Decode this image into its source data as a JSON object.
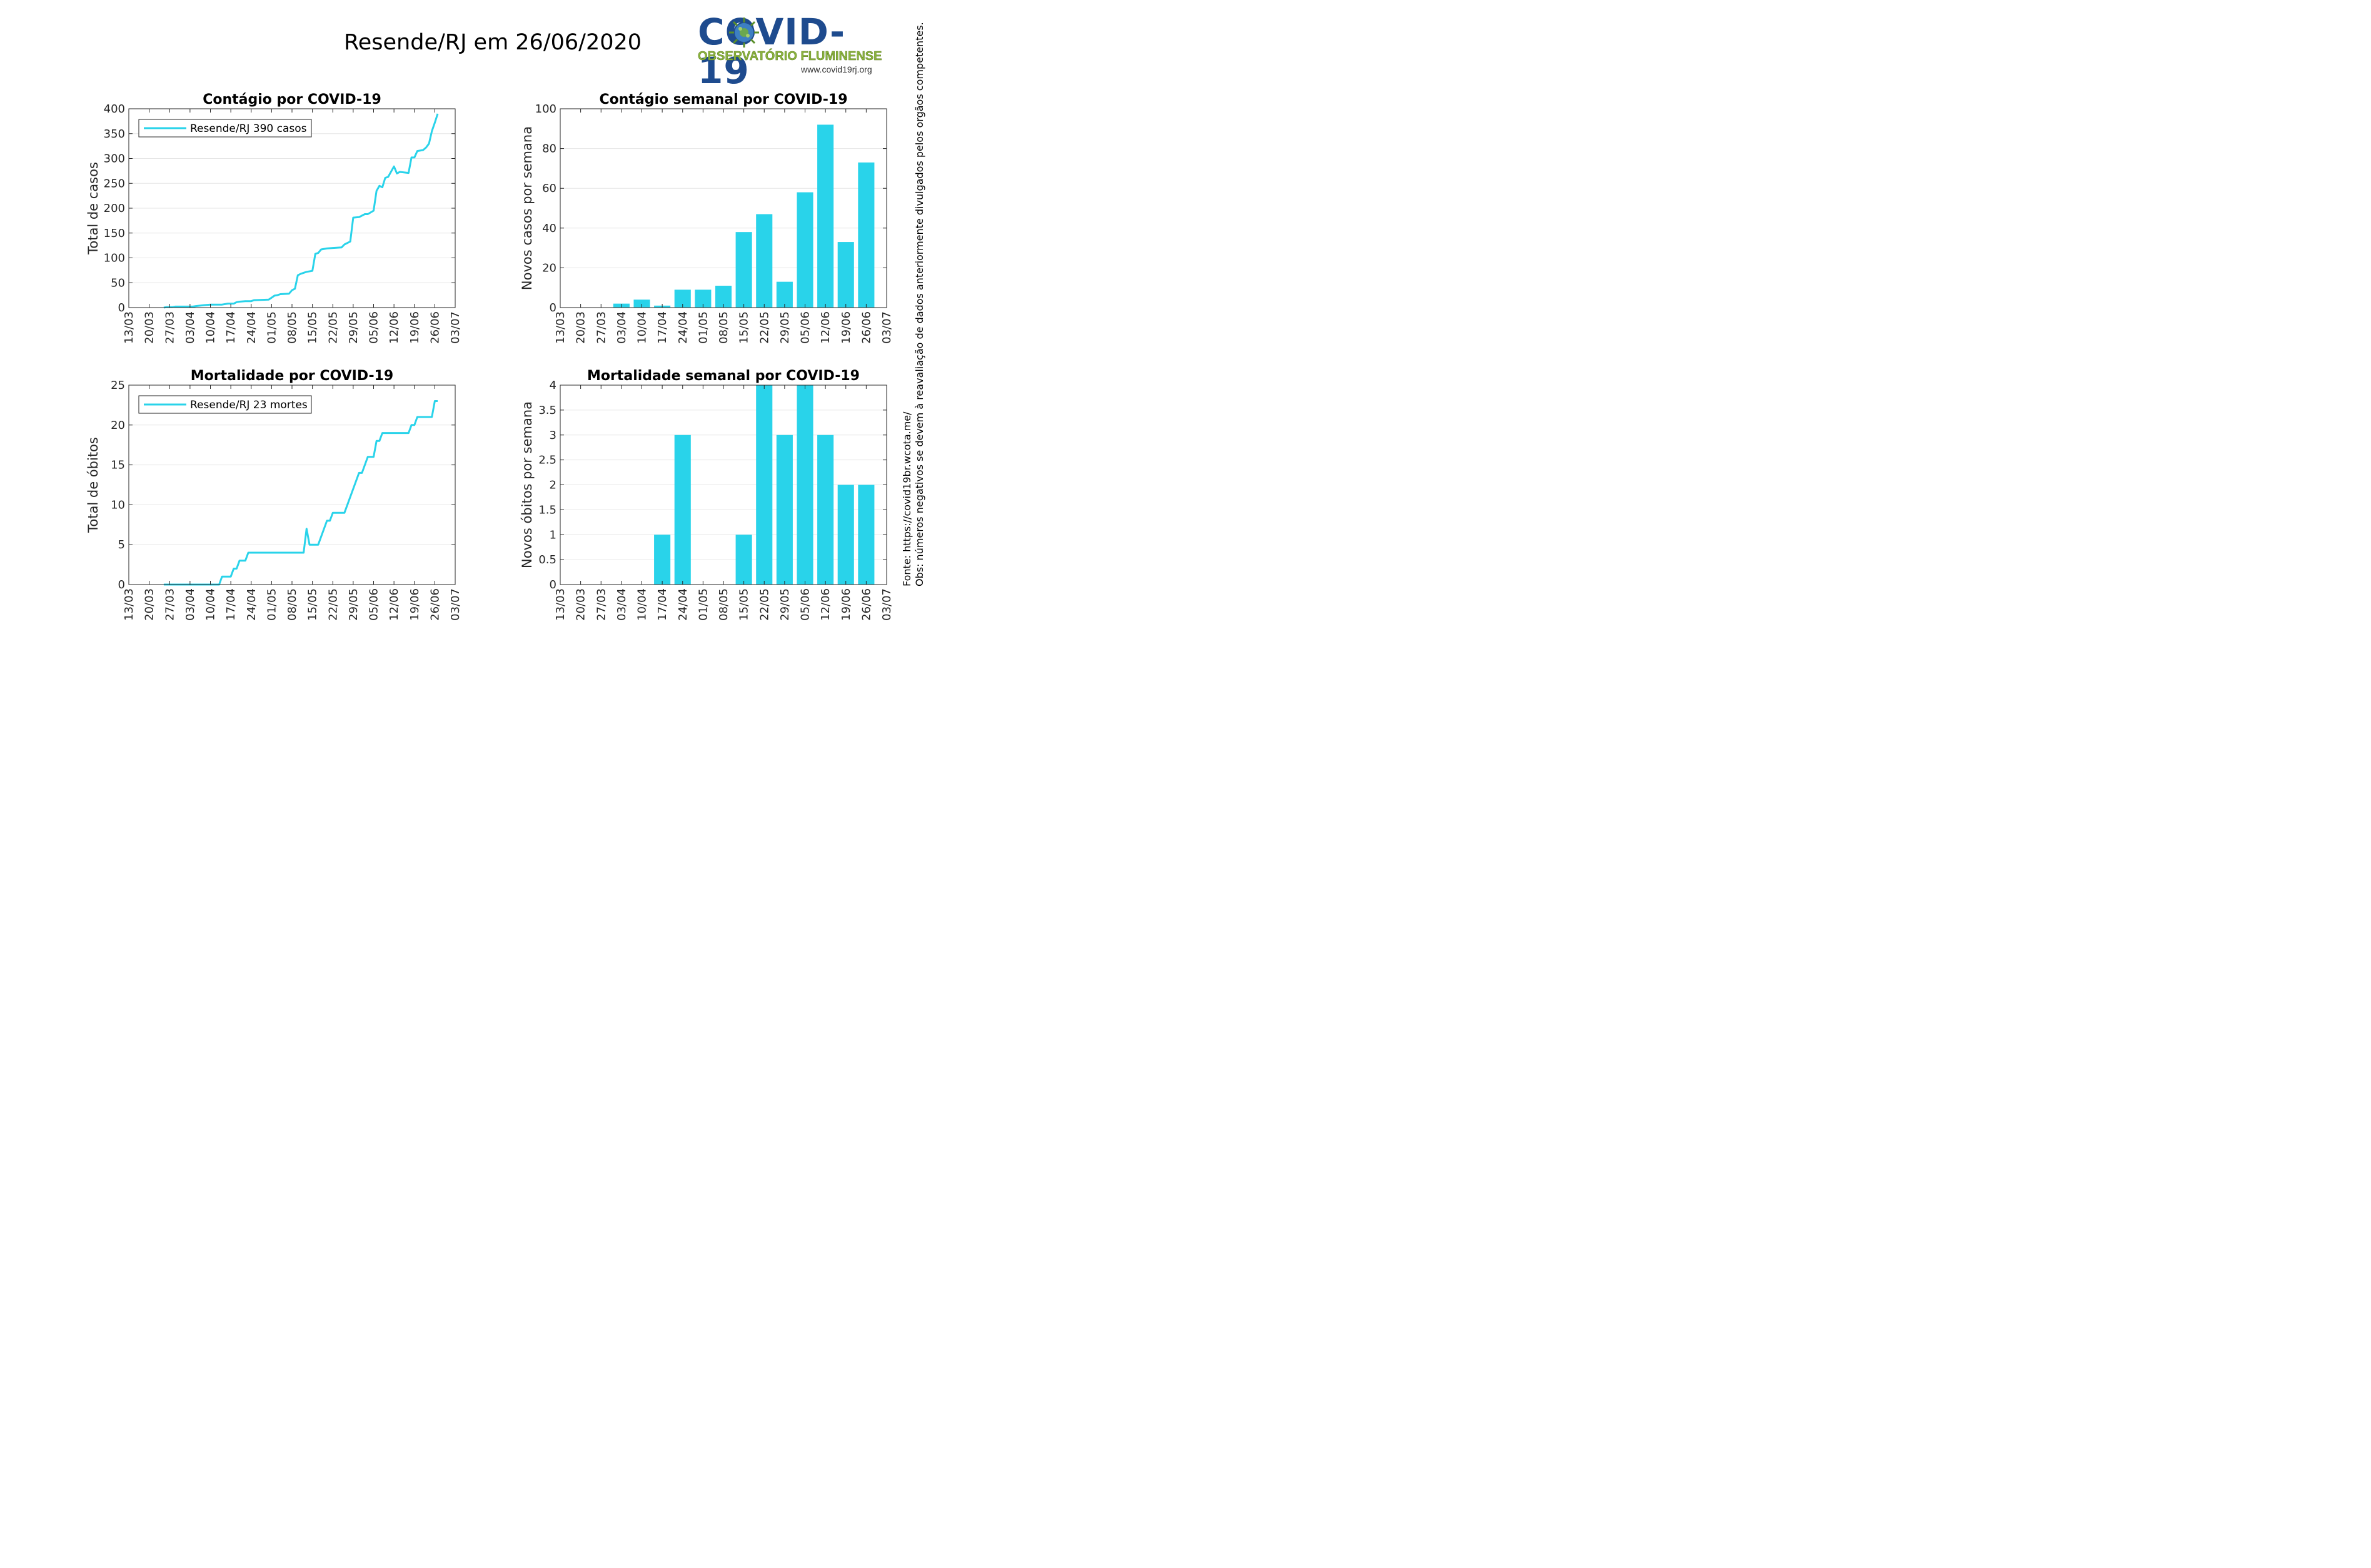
{
  "title": "Resende/RJ em 26/06/2020",
  "logo": {
    "wordmark": "COVID-19",
    "subtitle": "OBSERVATÓRIO FLUMINENSE",
    "url": "www.covid19rj.org"
  },
  "notes": {
    "source": "Fonte: https://covid19br.wcota.me/",
    "obs": "Obs: números negativos se devem à reavaliação de dados anteriormente divulgados pelos orgãos competentes."
  },
  "colors": {
    "series": "#29d3ea",
    "grid": "#e6e6e6",
    "logo_blue": "#1e4b8e",
    "logo_green": "#8bb43d"
  },
  "chart_data": [
    {
      "id": "cases",
      "type": "line",
      "title": "Contágio por COVID-19",
      "xlabel": "",
      "ylabel": "Total de casos",
      "ylim": [
        0,
        400
      ],
      "yticks": [
        "0",
        "50",
        "100",
        "150",
        "200",
        "250",
        "300",
        "350",
        "400"
      ],
      "xlim": [
        "2020-03-13",
        "2020-07-03"
      ],
      "xticks": [
        "13/03",
        "20/03",
        "27/03",
        "03/04",
        "10/04",
        "17/04",
        "24/04",
        "01/05",
        "08/05",
        "15/05",
        "22/05",
        "29/05",
        "05/06",
        "12/06",
        "19/06",
        "26/06",
        "03/07"
      ],
      "grid": true,
      "legend_position": "top-left",
      "series": [
        {
          "name": "Resende/RJ  390 casos",
          "points": [
            [
              "2020-03-25",
              0
            ],
            [
              "2020-03-26",
              1
            ],
            [
              "2020-03-28",
              1
            ],
            [
              "2020-03-29",
              2
            ],
            [
              "2020-04-04",
              2
            ],
            [
              "2020-04-05",
              3
            ],
            [
              "2020-04-08",
              5
            ],
            [
              "2020-04-10",
              6
            ],
            [
              "2020-04-14",
              6
            ],
            [
              "2020-04-16",
              8
            ],
            [
              "2020-04-18",
              8
            ],
            [
              "2020-04-19",
              11
            ],
            [
              "2020-04-20",
              12
            ],
            [
              "2020-04-22",
              13
            ],
            [
              "2020-04-24",
              13
            ],
            [
              "2020-04-25",
              15
            ],
            [
              "2020-04-30",
              16
            ],
            [
              "2020-05-01",
              20
            ],
            [
              "2020-05-02",
              24
            ],
            [
              "2020-05-03",
              25
            ],
            [
              "2020-05-04",
              27
            ],
            [
              "2020-05-07",
              28
            ],
            [
              "2020-05-08",
              35
            ],
            [
              "2020-05-09",
              38
            ],
            [
              "2020-05-10",
              65
            ],
            [
              "2020-05-11",
              68
            ],
            [
              "2020-05-13",
              72
            ],
            [
              "2020-05-15",
              74
            ],
            [
              "2020-05-16",
              108
            ],
            [
              "2020-05-17",
              110
            ],
            [
              "2020-05-18",
              117
            ],
            [
              "2020-05-20",
              119
            ],
            [
              "2020-05-22",
              120
            ],
            [
              "2020-05-25",
              121
            ],
            [
              "2020-05-26",
              127
            ],
            [
              "2020-05-28",
              133
            ],
            [
              "2020-05-29",
              181
            ],
            [
              "2020-05-31",
              182
            ],
            [
              "2020-06-02",
              188
            ],
            [
              "2020-06-03",
              188
            ],
            [
              "2020-06-05",
              195
            ],
            [
              "2020-06-06",
              235
            ],
            [
              "2020-06-07",
              245
            ],
            [
              "2020-06-08",
              242
            ],
            [
              "2020-06-09",
              261
            ],
            [
              "2020-06-10",
              263
            ],
            [
              "2020-06-12",
              284
            ],
            [
              "2020-06-13",
              270
            ],
            [
              "2020-06-14",
              273
            ],
            [
              "2020-06-17",
              271
            ],
            [
              "2020-06-18",
              302
            ],
            [
              "2020-06-19",
              302
            ],
            [
              "2020-06-20",
              315
            ],
            [
              "2020-06-22",
              317
            ],
            [
              "2020-06-23",
              322
            ],
            [
              "2020-06-24",
              330
            ],
            [
              "2020-06-25",
              355
            ],
            [
              "2020-06-26",
              372
            ],
            [
              "2020-06-27",
              390
            ]
          ]
        }
      ]
    },
    {
      "id": "weekly-cases",
      "type": "bar",
      "title": "Contágio semanal por COVID-19",
      "xlabel": "",
      "ylabel": "Novos casos por semana",
      "ylim": [
        0,
        100
      ],
      "yticks": [
        "0",
        "20",
        "40",
        "60",
        "80",
        "100"
      ],
      "xticks": [
        "13/03",
        "20/03",
        "27/03",
        "03/04",
        "10/04",
        "17/04",
        "24/04",
        "01/05",
        "08/05",
        "15/05",
        "22/05",
        "29/05",
        "05/06",
        "12/06",
        "19/06",
        "26/06",
        "03/07"
      ],
      "grid": true,
      "categories": [
        "03/04",
        "10/04",
        "17/04",
        "24/04",
        "01/05",
        "08/05",
        "15/05",
        "22/05",
        "29/05",
        "05/06",
        "12/06",
        "19/06",
        "26/06"
      ],
      "values": [
        2,
        4,
        1,
        9,
        9,
        11,
        38,
        47,
        13,
        58,
        92,
        33,
        73
      ]
    },
    {
      "id": "deaths",
      "type": "line",
      "title": "Mortalidade por COVID-19",
      "xlabel": "",
      "ylabel": "Total de óbitos",
      "ylim": [
        0,
        25
      ],
      "yticks": [
        "0",
        "5",
        "10",
        "15",
        "20",
        "25"
      ],
      "xlim": [
        "2020-03-13",
        "2020-07-03"
      ],
      "xticks": [
        "13/03",
        "20/03",
        "27/03",
        "03/04",
        "10/04",
        "17/04",
        "24/04",
        "01/05",
        "08/05",
        "15/05",
        "22/05",
        "29/05",
        "05/06",
        "12/06",
        "19/06",
        "26/06",
        "03/07"
      ],
      "grid": true,
      "legend_position": "top-left",
      "series": [
        {
          "name": "Resende/RJ  23 mortes",
          "points": [
            [
              "2020-03-25",
              0
            ],
            [
              "2020-04-13",
              0
            ],
            [
              "2020-04-14",
              1
            ],
            [
              "2020-04-17",
              1
            ],
            [
              "2020-04-18",
              2
            ],
            [
              "2020-04-19",
              2
            ],
            [
              "2020-04-20",
              3
            ],
            [
              "2020-04-22",
              3
            ],
            [
              "2020-04-23",
              4
            ],
            [
              "2020-05-12",
              4
            ],
            [
              "2020-05-13",
              7
            ],
            [
              "2020-05-14",
              5
            ],
            [
              "2020-05-17",
              5
            ],
            [
              "2020-05-20",
              8
            ],
            [
              "2020-05-21",
              8
            ],
            [
              "2020-05-22",
              9
            ],
            [
              "2020-05-26",
              9
            ],
            [
              "2020-05-31",
              14
            ],
            [
              "2020-06-01",
              14
            ],
            [
              "2020-06-03",
              16
            ],
            [
              "2020-06-05",
              16
            ],
            [
              "2020-06-06",
              18
            ],
            [
              "2020-06-07",
              18
            ],
            [
              "2020-06-08",
              19
            ],
            [
              "2020-06-17",
              19
            ],
            [
              "2020-06-18",
              20
            ],
            [
              "2020-06-19",
              20
            ],
            [
              "2020-06-20",
              21
            ],
            [
              "2020-06-25",
              21
            ],
            [
              "2020-06-26",
              23
            ],
            [
              "2020-06-27",
              23
            ]
          ]
        }
      ]
    },
    {
      "id": "weekly-deaths",
      "type": "bar",
      "title": "Mortalidade semanal por COVID-19",
      "xlabel": "",
      "ylabel": "Novos óbitos por semana",
      "ylim": [
        0,
        4
      ],
      "yticks": [
        "0",
        "0.5",
        "1",
        "1.5",
        "2",
        "2.5",
        "3",
        "3.5",
        "4"
      ],
      "xticks": [
        "13/03",
        "20/03",
        "27/03",
        "03/04",
        "10/04",
        "17/04",
        "24/04",
        "01/05",
        "08/05",
        "15/05",
        "22/05",
        "29/05",
        "05/06",
        "12/06",
        "19/06",
        "26/06",
        "03/07"
      ],
      "grid": true,
      "categories": [
        "17/04",
        "24/04",
        "15/05",
        "22/05",
        "29/05",
        "05/06",
        "12/06",
        "19/06",
        "26/06"
      ],
      "values": [
        1,
        3,
        1,
        4,
        3,
        4,
        3,
        2,
        2
      ]
    }
  ]
}
